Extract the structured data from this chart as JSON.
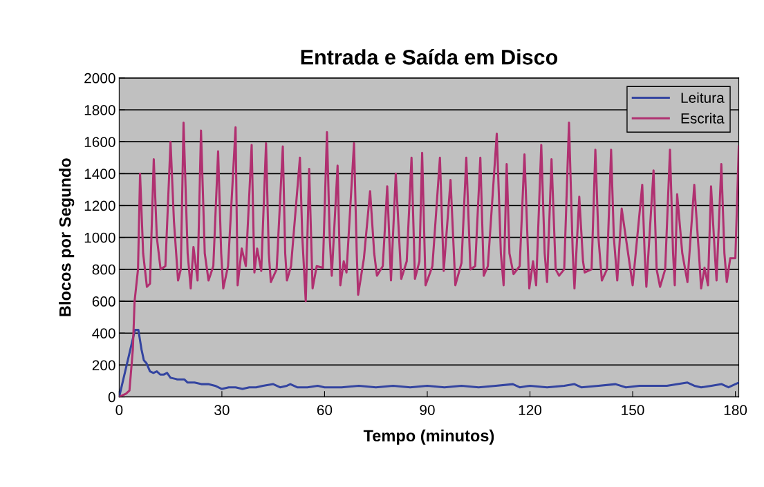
{
  "chart_data": {
    "type": "line",
    "title": "Entrada e Saída em Disco",
    "xlabel": "Tempo (minutos)",
    "ylabel": "Blocos por Segundo",
    "xlim": [
      0,
      181
    ],
    "xticks": [
      0,
      30,
      60,
      90,
      120,
      150,
      180
    ],
    "ylim": [
      0,
      2000
    ],
    "yticks": [
      0,
      200,
      400,
      600,
      800,
      1000,
      1200,
      1400,
      1600,
      1800,
      2000
    ],
    "grid": "y",
    "legend": "top right",
    "marker": "none",
    "line_style": "solid",
    "series": [
      {
        "name": "Leitura",
        "color": "#3344a0",
        "x": [
          0,
          4.6,
          5.6,
          6.5,
          7.2,
          8,
          9,
          10,
          11,
          12,
          13,
          14,
          15,
          17,
          19,
          20,
          22,
          24,
          26,
          28,
          30,
          32,
          34,
          36,
          38,
          40,
          42,
          45,
          47,
          49,
          50,
          52,
          55,
          58,
          60,
          65,
          70,
          75,
          80,
          85,
          90,
          95,
          100,
          105,
          110,
          115,
          117,
          120,
          125,
          130,
          133,
          135,
          140,
          145,
          148,
          152,
          155,
          160,
          166,
          168,
          170,
          173,
          176,
          178,
          181
        ],
        "values": [
          0,
          420,
          420,
          300,
          230,
          210,
          160,
          150,
          160,
          140,
          140,
          150,
          120,
          110,
          110,
          90,
          90,
          80,
          80,
          70,
          50,
          60,
          60,
          50,
          60,
          60,
          70,
          80,
          60,
          70,
          80,
          60,
          60,
          70,
          60,
          60,
          70,
          60,
          70,
          60,
          70,
          60,
          70,
          60,
          70,
          80,
          60,
          70,
          60,
          70,
          80,
          60,
          70,
          80,
          60,
          70,
          70,
          70,
          90,
          70,
          60,
          70,
          80,
          60,
          90
        ]
      },
      {
        "name": "Escrita",
        "color": "#b03070",
        "x": [
          0,
          2,
          3,
          4,
          4.5,
          5.5,
          6.1,
          7,
          8.1,
          9,
          10.1,
          11,
          12.1,
          13.5,
          15,
          16,
          17.2,
          18,
          18.8,
          20,
          20.9,
          21.7,
          22.9,
          23.9,
          25,
          26.1,
          27.5,
          28.9,
          29.8,
          30.4,
          31.8,
          34.0,
          34.6,
          35.8,
          37,
          38.7,
          39.5,
          40.3,
          41.5,
          42.9,
          43.7,
          44.3,
          46,
          47.8,
          48.5,
          49,
          50.2,
          52.8,
          53.5,
          54.5,
          55.5,
          56.5,
          57.7,
          59.5,
          60.7,
          61.5,
          62.1,
          63.8,
          64.6,
          65.6,
          66.4,
          68.6,
          69.4,
          69.8,
          71.5,
          73.3,
          74.5,
          75.3,
          77,
          78.3,
          79.4,
          80.8,
          82.4,
          84,
          85.4,
          86.4,
          87.7,
          88.5,
          89.5,
          91.5,
          93.7,
          94.8,
          96.8,
          98.2,
          100,
          101.4,
          102.6,
          104,
          105.5,
          106.5,
          107.7,
          110.3,
          111.5,
          112.3,
          113.2,
          114,
          115.2,
          117,
          118.4,
          119.8,
          120.9,
          121.8,
          123.3,
          124.3,
          125.0,
          126.3,
          127.5,
          128.5,
          130,
          131.4,
          132.5,
          133,
          134.4,
          135.5,
          136,
          138,
          139.1,
          140,
          141,
          142.5,
          143.7,
          144.5,
          145.5,
          146.8,
          148,
          150,
          152.8,
          153.5,
          154,
          156.1,
          157,
          158,
          159.5,
          160.9,
          161.8,
          162.3,
          163.0,
          164.5,
          166,
          168.0,
          169.5,
          170,
          171,
          172,
          172.9,
          174,
          174.5,
          175.9,
          176.8,
          177.5,
          178.5,
          180,
          181
        ],
        "values": [
          0,
          20,
          40,
          300,
          600,
          800,
          1400,
          900,
          690,
          710,
          1490,
          1000,
          800,
          820,
          1600,
          1100,
          730,
          800,
          1720,
          900,
          680,
          940,
          730,
          1670,
          900,
          730,
          820,
          1540,
          900,
          680,
          820,
          1690,
          700,
          930,
          820,
          1580,
          780,
          930,
          790,
          1590,
          900,
          720,
          800,
          1570,
          900,
          730,
          820,
          1500,
          1000,
          600,
          1430,
          680,
          820,
          810,
          1660,
          1000,
          760,
          1450,
          700,
          850,
          780,
          1590,
          900,
          640,
          870,
          1290,
          900,
          760,
          820,
          1320,
          730,
          1400,
          740,
          850,
          1500,
          740,
          850,
          1530,
          700,
          820,
          1500,
          790,
          1360,
          700,
          840,
          1500,
          800,
          820,
          1500,
          760,
          820,
          1650,
          900,
          700,
          1460,
          900,
          770,
          820,
          1520,
          680,
          850,
          700,
          1580,
          900,
          720,
          1490,
          800,
          760,
          800,
          1720,
          900,
          680,
          1255,
          850,
          780,
          800,
          1550,
          1000,
          730,
          800,
          1550,
          1000,
          730,
          1180,
          1000,
          700,
          1330,
          900,
          690,
          1420,
          800,
          690,
          800,
          1550,
          900,
          700,
          1270,
          900,
          720,
          1330,
          850,
          680,
          810,
          700,
          1320,
          900,
          730,
          1460,
          900,
          720,
          870,
          870,
          1570
        ]
      }
    ]
  }
}
